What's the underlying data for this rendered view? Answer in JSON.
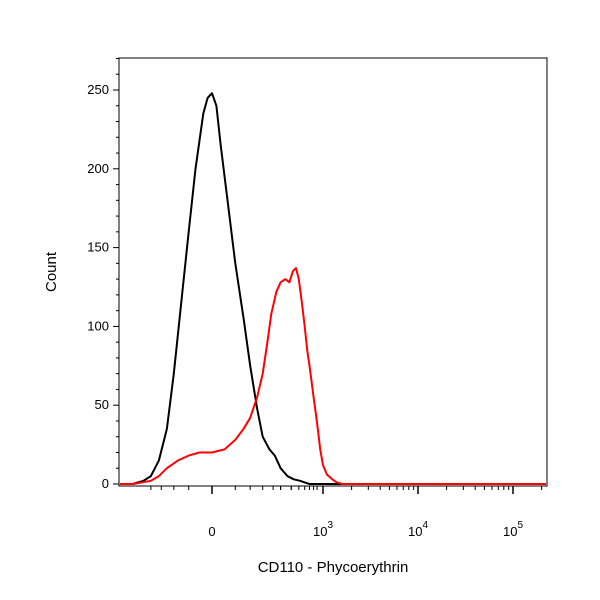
{
  "chart_data": {
    "type": "line",
    "title": "",
    "xlabel": "CD110 - Phycoerythrin",
    "ylabel": "Count",
    "x_scale": "biexponential",
    "ylim": [
      0,
      270
    ],
    "grid": false,
    "legend": "none",
    "y_ticks": [
      {
        "value": 0,
        "label": "0"
      },
      {
        "value": 50,
        "label": "50"
      },
      {
        "value": 100,
        "label": "100"
      },
      {
        "value": 150,
        "label": "150"
      },
      {
        "value": 200,
        "label": "200"
      },
      {
        "value": 250,
        "label": "250"
      }
    ],
    "x_ticks": [
      {
        "value": 0,
        "base": "0",
        "exp": ""
      },
      {
        "value": 1000,
        "base": "10",
        "exp": "3"
      },
      {
        "value": 10000,
        "base": "10",
        "exp": "4"
      },
      {
        "value": 100000,
        "base": "10",
        "exp": "5"
      }
    ],
    "series": [
      {
        "color": "#000000",
        "x": [
          -2000,
          -300,
          -200,
          -150,
          -110,
          -80,
          -60,
          -45,
          -30,
          -20,
          -10,
          -5,
          0,
          5,
          10,
          20,
          30,
          45,
          60,
          80,
          100,
          130,
          160,
          200,
          260,
          330,
          420,
          500,
          600,
          1000,
          10000,
          100000,
          250000
        ],
        "y": [
          0,
          0,
          2,
          5,
          15,
          35,
          70,
          110,
          160,
          200,
          235,
          245,
          248,
          240,
          215,
          175,
          140,
          105,
          75,
          48,
          30,
          22,
          18,
          10,
          5,
          3,
          2,
          1,
          0,
          0,
          0,
          0,
          0
        ]
      },
      {
        "color": "#ff0000",
        "x": [
          -2000,
          -300,
          -150,
          -110,
          -80,
          -50,
          -30,
          -15,
          0,
          15,
          30,
          45,
          60,
          80,
          100,
          120,
          140,
          170,
          200,
          240,
          280,
          320,
          360,
          400,
          450,
          500,
          550,
          600,
          650,
          700,
          760,
          820,
          900,
          1000,
          1100,
          1250,
          1400,
          1600,
          2000,
          3000,
          10000,
          100000,
          250000
        ],
        "y": [
          0,
          0,
          2,
          5,
          10,
          15,
          18,
          20,
          20,
          22,
          28,
          35,
          42,
          55,
          70,
          90,
          108,
          122,
          128,
          130,
          128,
          135,
          137,
          130,
          115,
          100,
          85,
          75,
          65,
          55,
          45,
          35,
          22,
          12,
          6,
          3,
          1,
          0,
          0,
          0,
          0,
          0,
          0
        ]
      }
    ]
  }
}
